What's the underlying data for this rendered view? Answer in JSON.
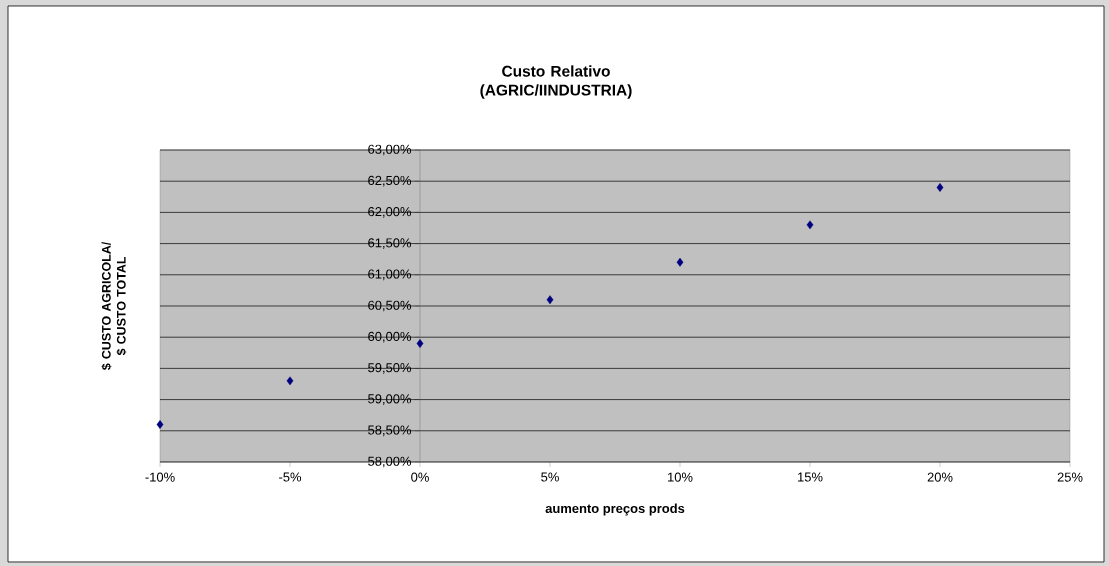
{
  "chart_data": {
    "type": "scatter",
    "title": "Custo Relativo (AGRIC/IINDUSTRIA)",
    "xlabel": "aumento preços prods",
    "ylabel": "$ CUSTO AGRICOLA/ $ CUSTO TOTAL",
    "x": [
      -10,
      -5,
      0,
      5,
      10,
      15,
      20
    ],
    "series": [
      {
        "color": "#000080",
        "values": [
          58.6,
          59.3,
          59.9,
          60.6,
          61.2,
          61.8,
          62.4
        ]
      }
    ],
    "xlim": [
      -10,
      25
    ],
    "ylim": [
      58,
      63
    ],
    "xticks": [
      {
        "value": -10,
        "label": "-10%"
      },
      {
        "value": -5,
        "label": "-5%"
      },
      {
        "value": 0,
        "label": "0%"
      },
      {
        "value": 5,
        "label": "5%"
      },
      {
        "value": 10,
        "label": "10%"
      },
      {
        "value": 15,
        "label": "15%"
      },
      {
        "value": 20,
        "label": "20%"
      },
      {
        "value": 25,
        "label": "25%"
      }
    ],
    "yticks": [
      {
        "value": 58,
        "label": "58,00%"
      },
      {
        "value": 58.5,
        "label": "58,50%"
      },
      {
        "value": 59,
        "label": "59,00%"
      },
      {
        "value": 59.5,
        "label": "59,50%"
      },
      {
        "value": 60,
        "label": "60,00%"
      },
      {
        "value": 60.5,
        "label": "60,50%"
      },
      {
        "value": 61,
        "label": "61,00%"
      },
      {
        "value": 61.5,
        "label": "61,50%"
      },
      {
        "value": 62,
        "label": "62,00%"
      },
      {
        "value": 62.5,
        "label": "62,50%"
      },
      {
        "value": 63,
        "label": "63,00%"
      }
    ],
    "grid": "y",
    "marker": "diamond"
  }
}
